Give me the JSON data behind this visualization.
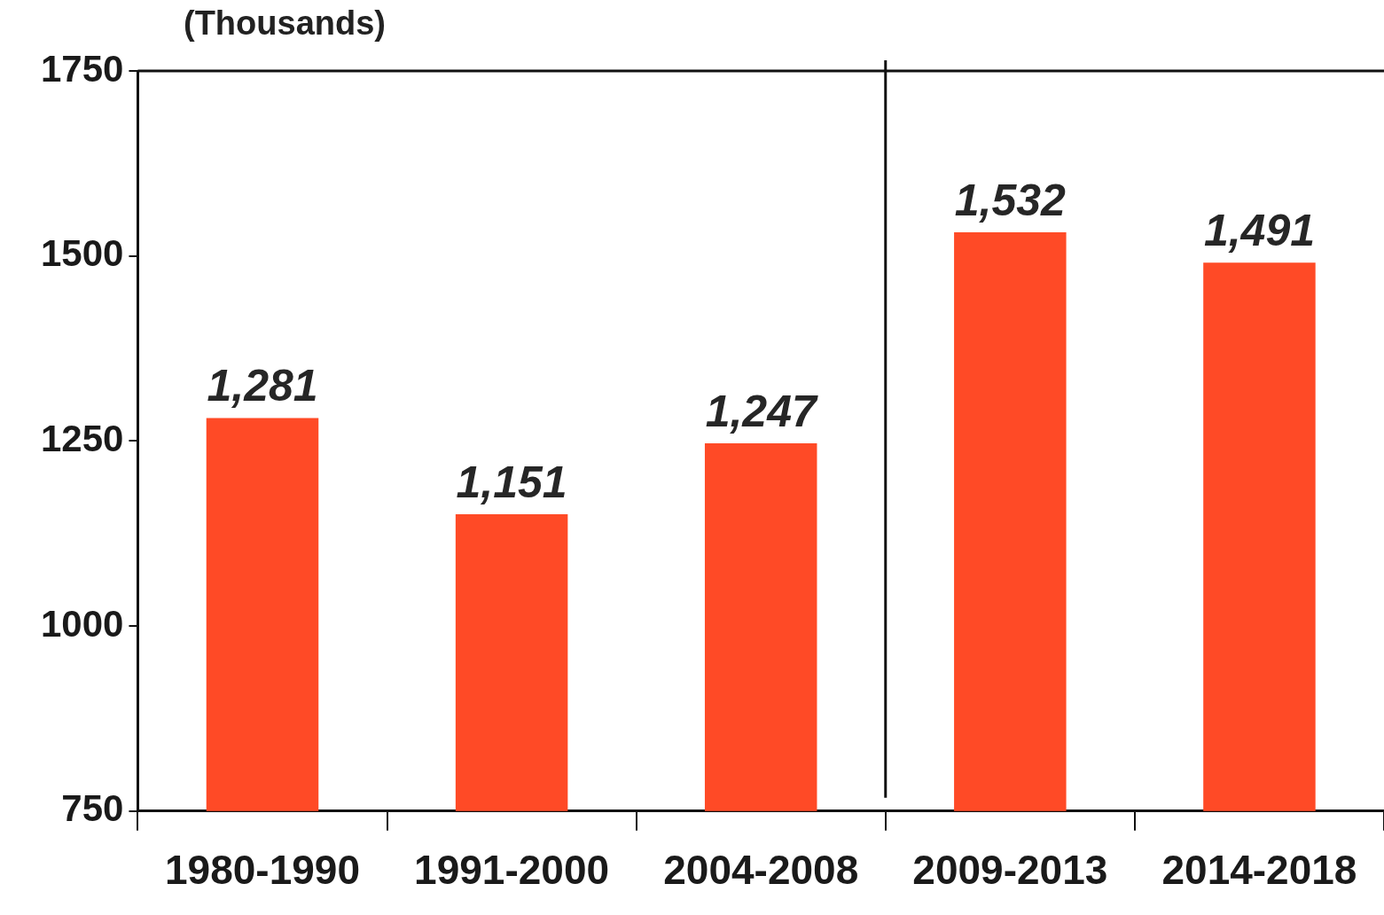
{
  "chart_data": {
    "type": "bar",
    "ylabel": "(Thousands)",
    "categories": [
      "1980-1990",
      "1991-2000",
      "2004-2008",
      "2009-2013",
      "2014-2018"
    ],
    "values": [
      1281,
      1151,
      1247,
      1532,
      1491
    ],
    "value_labels": [
      "1,281",
      "1,151",
      "1,247",
      "1,532",
      "1,491"
    ],
    "color": "#ff4a26",
    "ylim": [
      750,
      1750
    ],
    "yticks": [
      750,
      1000,
      1250,
      1500,
      1750
    ],
    "grid": false,
    "legend": false
  }
}
